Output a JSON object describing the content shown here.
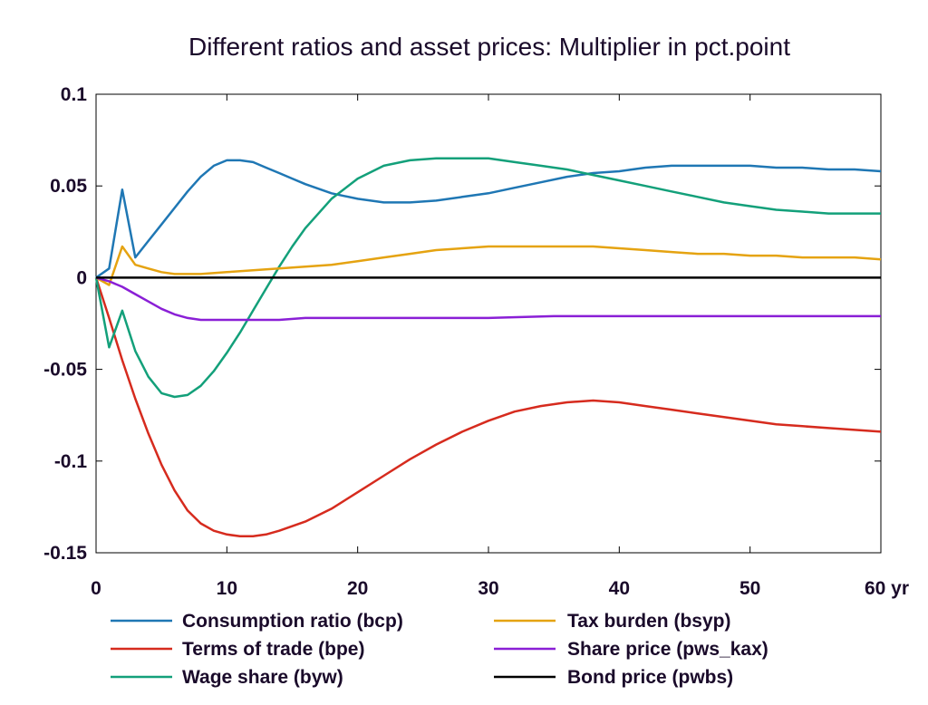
{
  "chart_data": {
    "type": "line",
    "title": "Different ratios and asset prices: Multiplier in pct.point",
    "x_unit": "yr",
    "xlim": [
      0,
      60
    ],
    "ylim": [
      -0.15,
      0.1
    ],
    "x_ticks": [
      0,
      10,
      20,
      30,
      40,
      50,
      60
    ],
    "x_tick_labels": [
      "0",
      "10",
      "20",
      "30",
      "40",
      "50",
      "60 yr"
    ],
    "y_ticks": [
      0.1,
      0.05,
      0,
      -0.05,
      -0.1,
      -0.15
    ],
    "y_tick_labels": [
      "0.1",
      "0.05",
      "0",
      "-0.05",
      "-0.1",
      "-0.15"
    ],
    "grid": false,
    "legend_position": "bottom",
    "series": [
      {
        "name": "Consumption ratio (bcp)",
        "color": "#1f77b4",
        "x": [
          0,
          1,
          2,
          3,
          4,
          5,
          6,
          7,
          8,
          9,
          10,
          11,
          12,
          13,
          14,
          15,
          16,
          18,
          20,
          22,
          24,
          26,
          28,
          30,
          32,
          34,
          36,
          38,
          40,
          42,
          44,
          46,
          48,
          50,
          52,
          54,
          56,
          58,
          60
        ],
        "y": [
          0,
          0.005,
          0.048,
          0.011,
          0.02,
          0.029,
          0.038,
          0.047,
          0.055,
          0.061,
          0.064,
          0.064,
          0.063,
          0.06,
          0.057,
          0.054,
          0.051,
          0.046,
          0.043,
          0.041,
          0.041,
          0.042,
          0.044,
          0.046,
          0.049,
          0.052,
          0.055,
          0.057,
          0.058,
          0.06,
          0.061,
          0.061,
          0.061,
          0.061,
          0.06,
          0.06,
          0.059,
          0.059,
          0.058
        ]
      },
      {
        "name": "Terms of trade (bpe)",
        "color": "#d62b1e",
        "x": [
          0,
          1,
          2,
          3,
          4,
          5,
          6,
          7,
          8,
          9,
          10,
          11,
          12,
          13,
          14,
          16,
          18,
          20,
          22,
          24,
          26,
          28,
          30,
          32,
          34,
          36,
          38,
          40,
          42,
          44,
          46,
          48,
          50,
          52,
          54,
          56,
          58,
          60
        ],
        "y": [
          0,
          -0.022,
          -0.045,
          -0.066,
          -0.085,
          -0.102,
          -0.116,
          -0.127,
          -0.134,
          -0.138,
          -0.14,
          -0.141,
          -0.141,
          -0.14,
          -0.138,
          -0.133,
          -0.126,
          -0.117,
          -0.108,
          -0.099,
          -0.091,
          -0.084,
          -0.078,
          -0.073,
          -0.07,
          -0.068,
          -0.067,
          -0.068,
          -0.07,
          -0.072,
          -0.074,
          -0.076,
          -0.078,
          -0.08,
          -0.081,
          -0.082,
          -0.083,
          -0.084
        ]
      },
      {
        "name": "Wage share (byw)",
        "color": "#13a07a",
        "x": [
          0,
          1,
          2,
          3,
          4,
          5,
          6,
          7,
          8,
          9,
          10,
          11,
          12,
          13,
          14,
          15,
          16,
          18,
          20,
          22,
          24,
          26,
          28,
          30,
          32,
          34,
          36,
          38,
          40,
          42,
          44,
          46,
          48,
          50,
          52,
          54,
          56,
          58,
          60
        ],
        "y": [
          0,
          -0.038,
          -0.018,
          -0.04,
          -0.054,
          -0.063,
          -0.065,
          -0.064,
          -0.059,
          -0.051,
          -0.041,
          -0.03,
          -0.018,
          -0.006,
          0.006,
          0.017,
          0.027,
          0.043,
          0.054,
          0.061,
          0.064,
          0.065,
          0.065,
          0.065,
          0.063,
          0.061,
          0.059,
          0.056,
          0.053,
          0.05,
          0.047,
          0.044,
          0.041,
          0.039,
          0.037,
          0.036,
          0.035,
          0.035,
          0.035
        ]
      },
      {
        "name": "Tax burden (bsyp)",
        "color": "#e5a311",
        "x": [
          0,
          1,
          2,
          3,
          4,
          5,
          6,
          7,
          8,
          10,
          12,
          14,
          16,
          18,
          20,
          22,
          24,
          26,
          28,
          30,
          32,
          34,
          36,
          38,
          40,
          42,
          44,
          46,
          48,
          50,
          52,
          54,
          56,
          58,
          60
        ],
        "y": [
          0,
          -0.004,
          0.017,
          0.007,
          0.005,
          0.003,
          0.002,
          0.002,
          0.002,
          0.003,
          0.004,
          0.005,
          0.006,
          0.007,
          0.009,
          0.011,
          0.013,
          0.015,
          0.016,
          0.017,
          0.017,
          0.017,
          0.017,
          0.017,
          0.016,
          0.015,
          0.014,
          0.013,
          0.013,
          0.012,
          0.012,
          0.011,
          0.011,
          0.011,
          0.01
        ]
      },
      {
        "name": "Share price (pws_kax)",
        "color": "#8a1fd6",
        "x": [
          0,
          1,
          2,
          3,
          4,
          5,
          6,
          7,
          8,
          9,
          10,
          11,
          12,
          14,
          16,
          18,
          20,
          25,
          30,
          35,
          40,
          45,
          50,
          55,
          60
        ],
        "y": [
          0,
          -0.002,
          -0.005,
          -0.009,
          -0.013,
          -0.017,
          -0.02,
          -0.022,
          -0.023,
          -0.023,
          -0.023,
          -0.023,
          -0.023,
          -0.023,
          -0.022,
          -0.022,
          -0.022,
          -0.022,
          -0.022,
          -0.021,
          -0.021,
          -0.021,
          -0.021,
          -0.021,
          -0.021
        ]
      },
      {
        "name": "Bond price (pwbs)",
        "color": "#000000",
        "x": [
          0,
          60
        ],
        "y": [
          0,
          0
        ]
      }
    ]
  }
}
